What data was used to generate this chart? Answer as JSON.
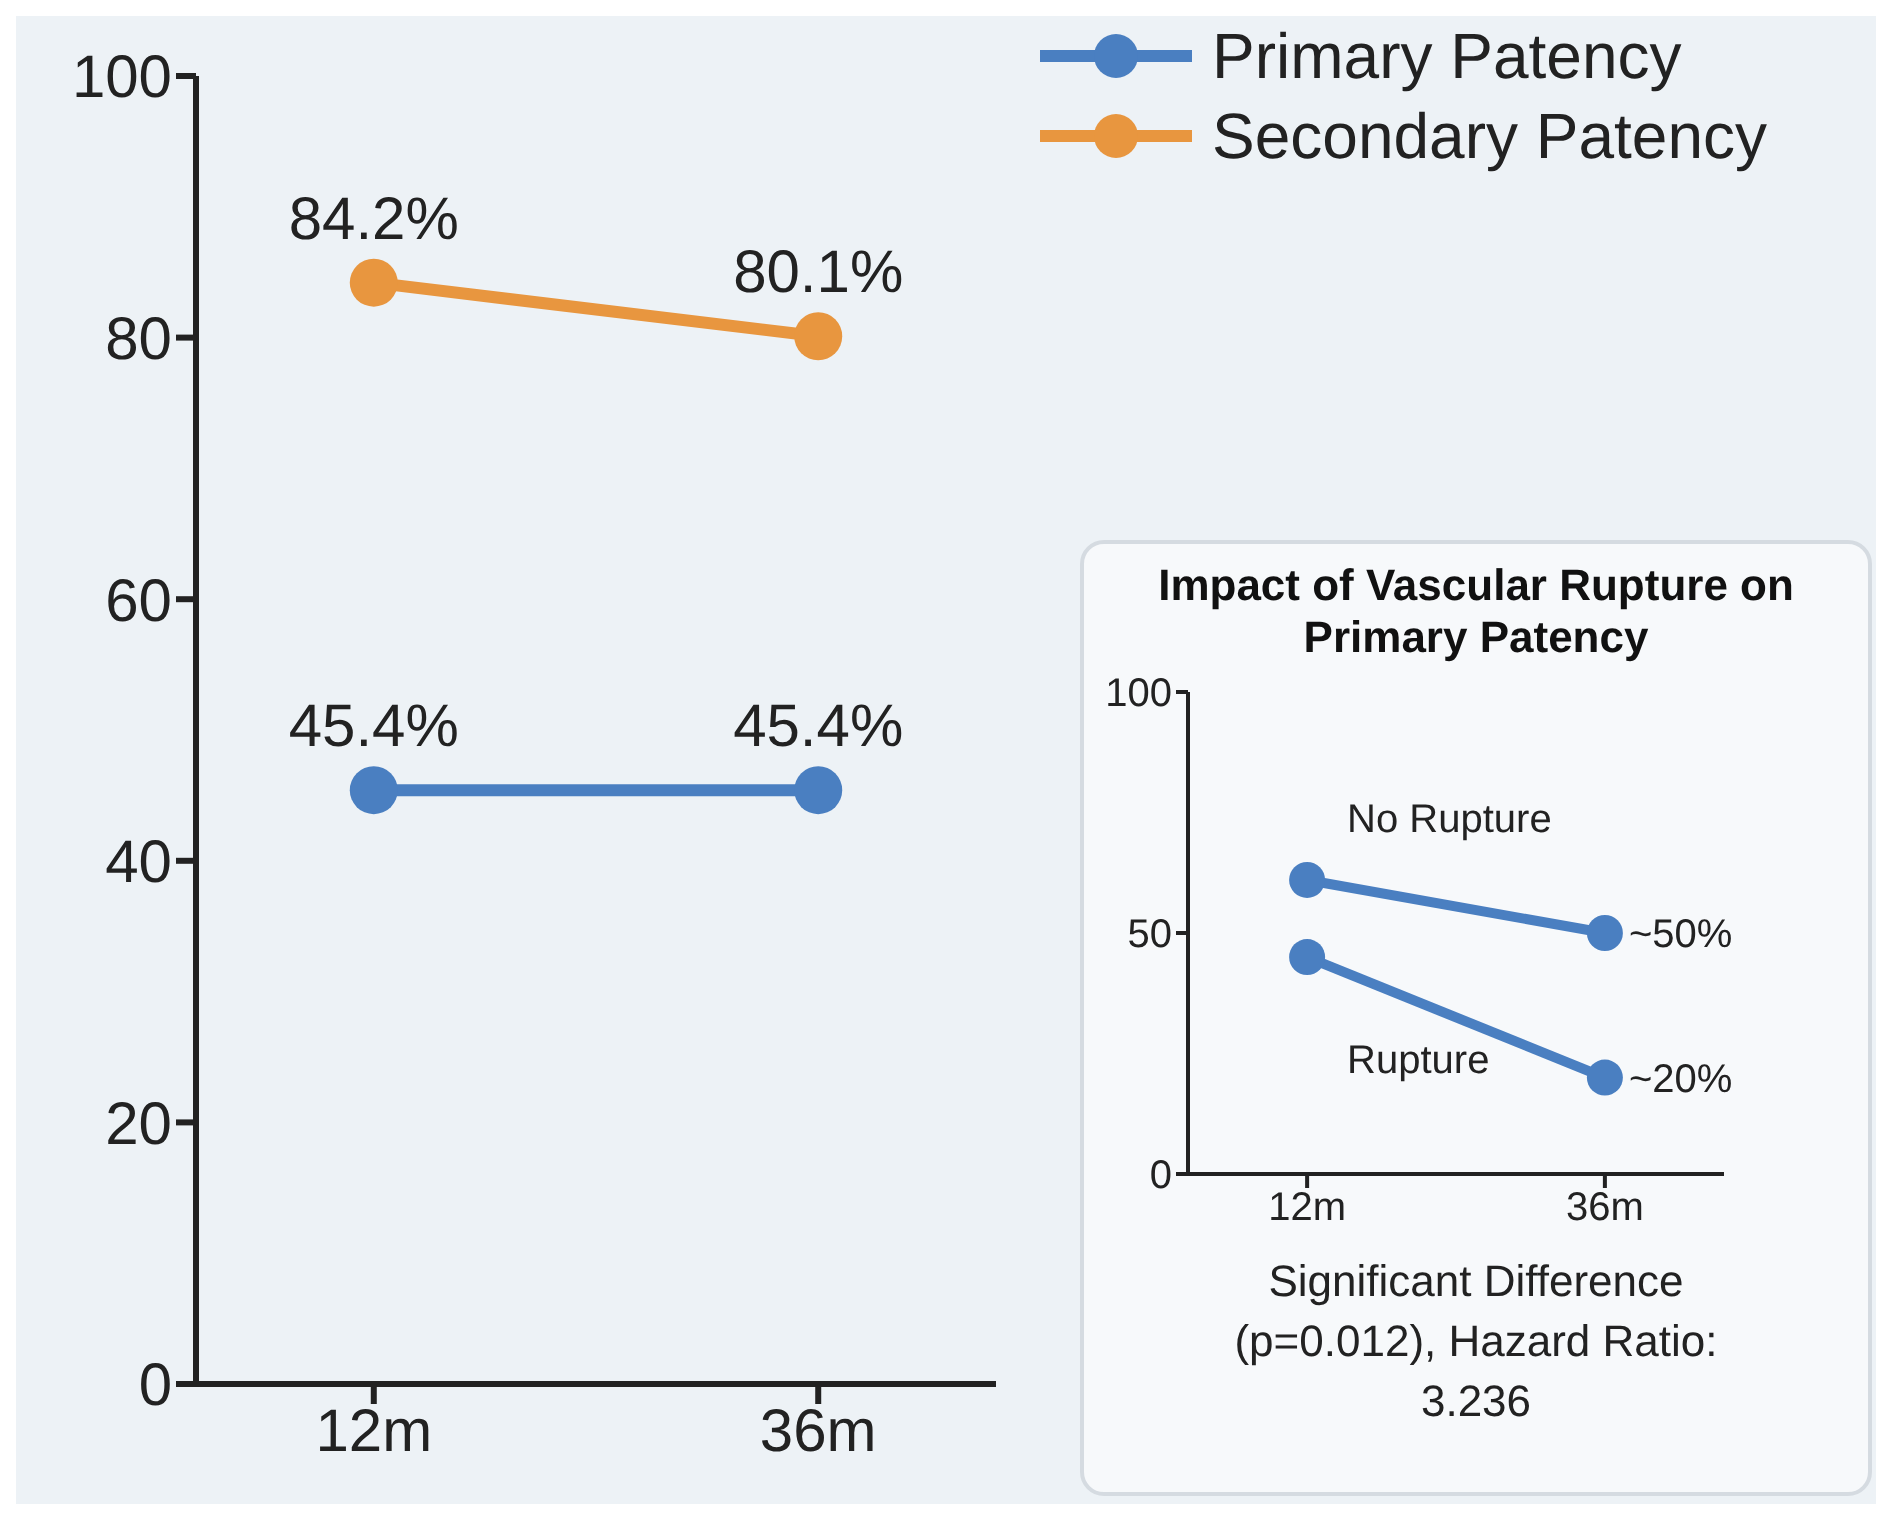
{
  "chart_data": [
    {
      "type": "line",
      "categories": [
        "12m",
        "36m"
      ],
      "series": [
        {
          "name": "Primary Patency",
          "color": "#4a7fc1",
          "values": [
            45.4,
            45.4
          ],
          "value_labels": [
            "45.4%",
            "45.4%"
          ]
        },
        {
          "name": "Secondary Patency",
          "color": "#e8963f",
          "values": [
            84.2,
            80.1
          ],
          "value_labels": [
            "84.2%",
            "80.1%"
          ]
        }
      ],
      "ylim": [
        0,
        100
      ],
      "yticks": [
        0,
        20,
        40,
        60,
        80,
        100
      ],
      "legend": "top right",
      "marker": "circle"
    },
    {
      "type": "line",
      "title": "Impact of Vascular Rupture on Primary Patency",
      "categories": [
        "12m",
        "36m"
      ],
      "series": [
        {
          "name": "No Rupture",
          "color": "#4a7fc1",
          "values": [
            61,
            50
          ],
          "value_labels": [
            null,
            "~50%"
          ]
        },
        {
          "name": "Rupture",
          "color": "#4a7fc1",
          "values": [
            45,
            20
          ],
          "value_labels": [
            null,
            "~20%"
          ]
        }
      ],
      "ylim": [
        0,
        100
      ],
      "yticks": [
        0,
        50,
        100
      ],
      "marker": "circle",
      "annotations": [
        "Significant Difference (p=0.012), Hazard Ratio: 3.236"
      ]
    }
  ]
}
